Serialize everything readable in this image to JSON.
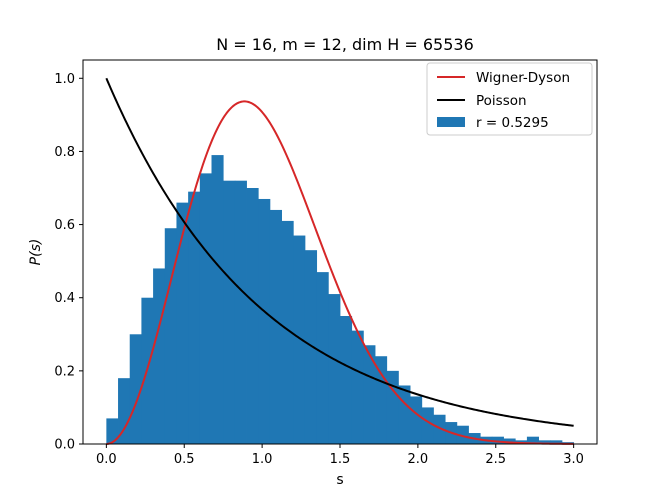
{
  "chart_data": {
    "type": "bar",
    "title": "N = 16, m = 12, dim H = 65536",
    "xlabel": "s",
    "ylabel": "P(s)",
    "xlim": [
      -0.15,
      3.15
    ],
    "ylim": [
      0,
      1.05
    ],
    "x_ticks": [
      "0.0",
      "0.5",
      "1.0",
      "1.5",
      "2.0",
      "2.5",
      "3.0"
    ],
    "x_tick_values": [
      0,
      0.5,
      1.0,
      1.5,
      2.0,
      2.5,
      3.0
    ],
    "y_ticks": [
      "0.0",
      "0.2",
      "0.4",
      "0.6",
      "0.8",
      "1.0"
    ],
    "y_tick_values": [
      0,
      0.2,
      0.4,
      0.6,
      0.8,
      1.0
    ],
    "bin_width": 0.075,
    "bin_edges_start": 0.0,
    "histogram": {
      "name": "r = 0.5295",
      "color": "#1f77b4",
      "values": [
        0.07,
        0.18,
        0.3,
        0.4,
        0.48,
        0.59,
        0.66,
        0.69,
        0.74,
        0.79,
        0.72,
        0.72,
        0.7,
        0.67,
        0.64,
        0.61,
        0.57,
        0.53,
        0.47,
        0.41,
        0.35,
        0.31,
        0.27,
        0.24,
        0.2,
        0.16,
        0.13,
        0.1,
        0.08,
        0.06,
        0.05,
        0.03,
        0.02,
        0.02,
        0.015,
        0.01,
        0.02,
        0.01,
        0.01,
        0.005
      ]
    },
    "curves": [
      {
        "name": "Wigner-Dyson",
        "color": "#d62728",
        "formula": "(32/pi^2) s^2 exp(-4 s^2 / pi)",
        "x_range": [
          0,
          3.0
        ]
      },
      {
        "name": "Poisson",
        "color": "#000000",
        "formula": "exp(-s)",
        "x_range": [
          0,
          3.0
        ]
      }
    ],
    "legend": {
      "position": "top-right",
      "entries": [
        "Wigner-Dyson",
        "Poisson",
        "r = 0.5295"
      ]
    }
  }
}
